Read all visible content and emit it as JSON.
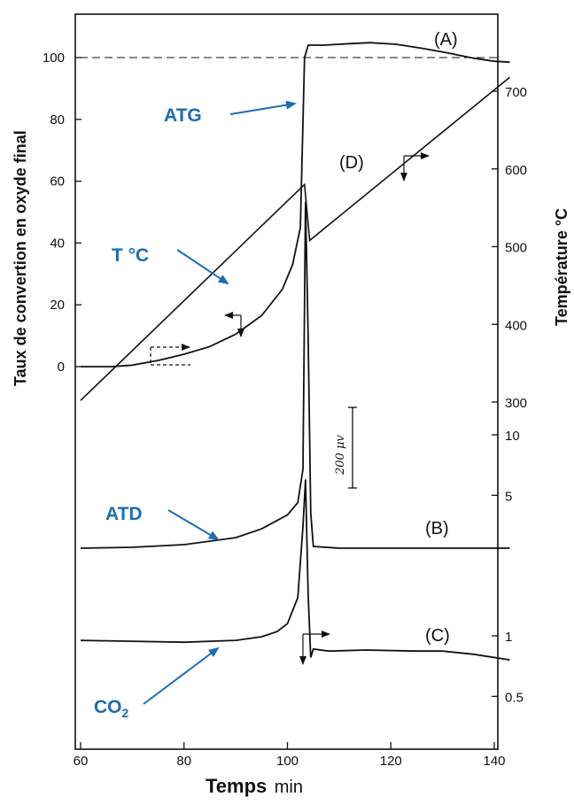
{
  "chart_data": {
    "type": "line",
    "xlabel": "Temps",
    "xunit": "min",
    "ylabel_left": "Taux de convertion en oxyde final",
    "ylabel_right": "Température °C",
    "x_ticks": [
      60,
      80,
      100,
      120,
      140
    ],
    "xlim": [
      60,
      143
    ],
    "y_left_ticks": [
      0,
      20,
      40,
      60,
      80,
      100
    ],
    "y_right_temp_ticks": [
      300,
      400,
      500,
      600,
      700
    ],
    "y_right_log_ticks": [
      "10",
      "5",
      "1",
      "0.5"
    ],
    "scale_bar_label": "200 μv",
    "series": [
      {
        "name": "(A)",
        "axis": "conversion %",
        "x": [
          60,
          66,
          70,
          75,
          80,
          85,
          90,
          95,
          99,
          101,
          102.5,
          103.3,
          104,
          107,
          112,
          116,
          121,
          126,
          131,
          136,
          140,
          143
        ],
        "y": [
          0,
          0,
          0.5,
          2,
          4,
          6.5,
          10.5,
          16.5,
          25,
          33,
          45,
          100,
          104,
          104,
          104.5,
          104.8,
          104.3,
          103,
          101.5,
          99.8,
          98.8,
          98.5
        ]
      },
      {
        "name": "(D)",
        "axis": "température °C",
        "x": [
          60,
          103.3,
          104.3,
          143
        ],
        "y": [
          302,
          580,
          508,
          718
        ]
      },
      {
        "name": "(B)",
        "axis": "ATD μV",
        "x": [
          60,
          70,
          80,
          90,
          95,
          100,
          102,
          103,
          103.5,
          104,
          104.5,
          105,
          110,
          120,
          130,
          143
        ],
        "y": [
          0,
          1,
          4,
          12,
          22,
          38,
          52,
          90,
          395,
          240,
          40,
          2,
          0,
          0,
          0,
          0
        ]
      },
      {
        "name": "(C)",
        "axis": "CO2",
        "x": [
          60,
          70,
          80,
          90,
          95,
          98,
          100,
          102,
          103,
          103.5,
          104,
          104.5,
          105,
          108,
          115,
          125,
          130,
          136,
          143
        ],
        "y": [
          0.95,
          0.94,
          0.93,
          0.95,
          0.99,
          1.05,
          1.15,
          1.55,
          3.5,
          6.0,
          1.6,
          0.78,
          0.86,
          0.84,
          0.85,
          0.84,
          0.84,
          0.81,
          0.76
        ]
      }
    ],
    "annotations": [
      {
        "label": "ATG",
        "target": "(A)"
      },
      {
        "label": "T °C",
        "target": "(D)"
      },
      {
        "label": "ATD",
        "target": "(B)"
      },
      {
        "label": "CO2",
        "target": "(C)"
      }
    ]
  }
}
